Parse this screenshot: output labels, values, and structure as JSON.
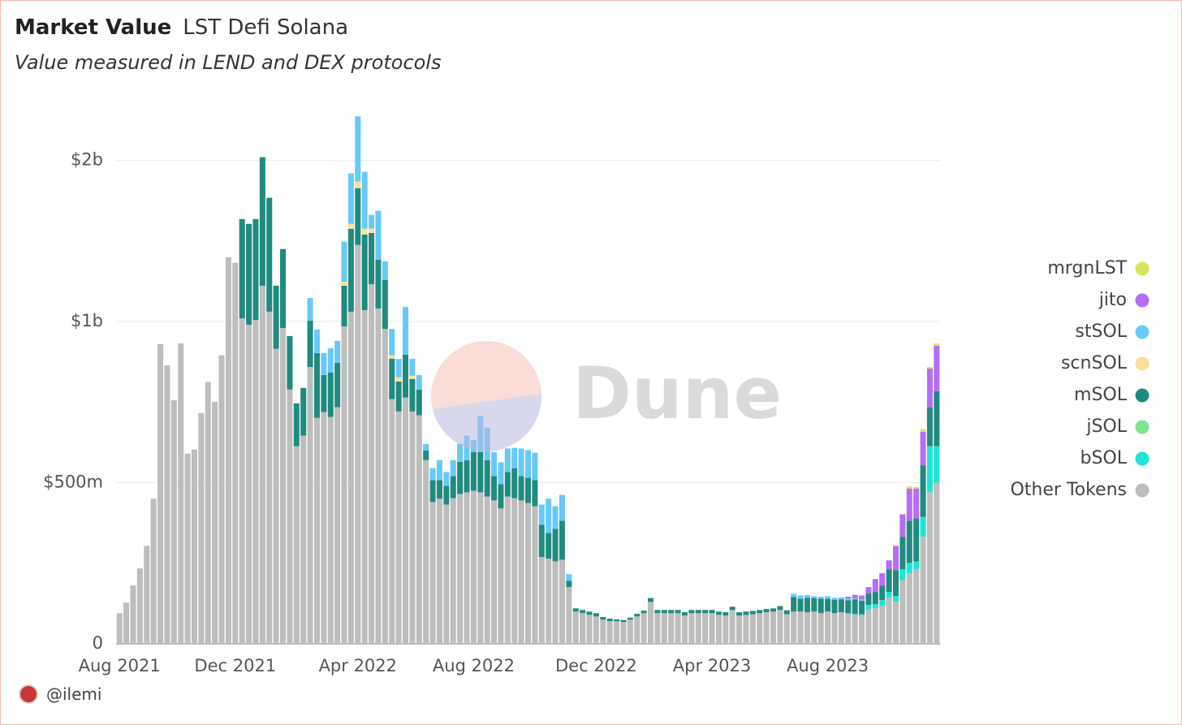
{
  "chart_data": {
    "type": "stacked_bar",
    "title": "Market Value",
    "subtitle": "LST Defi Solana",
    "description": "Value measured in LEND and DEX protocols",
    "author": "@ilemi",
    "watermark": "Dune",
    "categories": [
      "Aug 2021",
      null,
      null,
      null,
      null,
      null,
      null,
      null,
      null,
      null,
      null,
      null,
      null,
      null,
      null,
      null,
      null,
      "Dec 2021",
      null,
      null,
      null,
      null,
      null,
      null,
      null,
      null,
      null,
      null,
      null,
      null,
      null,
      null,
      null,
      null,
      null,
      "Apr 2022",
      null,
      null,
      null,
      null,
      null,
      null,
      null,
      null,
      null,
      null,
      null,
      null,
      null,
      null,
      null,
      null,
      "Aug 2022",
      null,
      null,
      null,
      null,
      null,
      null,
      null,
      null,
      null,
      null,
      null,
      null,
      null,
      null,
      null,
      null,
      null,
      "Dec 2022",
      null,
      null,
      null,
      null,
      null,
      null,
      null,
      null,
      null,
      null,
      null,
      null,
      null,
      null,
      null,
      null,
      "Apr 2023",
      null,
      null,
      null,
      null,
      null,
      null,
      null,
      null,
      null,
      null,
      null,
      null,
      null,
      null,
      null,
      null,
      "Aug 2023",
      null,
      null,
      null,
      null,
      null,
      null,
      null,
      null,
      null,
      null,
      null,
      null,
      null,
      null,
      null,
      null
    ],
    "ylim": [
      0,
      2300
    ],
    "yticks": [
      0,
      {
        "value": 500,
        "label": "$500m"
      },
      {
        "value": 1000,
        "label": "$1b"
      },
      {
        "value": 2000,
        "label": "$2b"
      }
    ],
    "grid": true,
    "legend": "right",
    "series": [
      {
        "name": "Other Tokens",
        "color": "#bdbdbd",
        "values": [
          95,
          128,
          181,
          234,
          304,
          450,
          930,
          864,
          756,
          932,
          590,
          603,
          716,
          812,
          751,
          895,
          1399,
          1364,
          1020,
          990,
          1010,
          1222,
          1061,
          915,
          980,
          789,
          613,
          646,
          859,
          701,
          719,
          704,
          734,
          985,
          1061,
          1475,
          1071,
          1232,
          1081,
          977,
          759,
          721,
          764,
          721,
          709,
          570,
          440,
          450,
          432,
          452,
          465,
          470,
          475,
          470,
          457,
          445,
          420,
          457,
          452,
          445,
          437,
          427,
          269,
          264,
          256,
          261,
          176,
          100,
          95,
          90,
          85,
          75,
          70,
          70,
          68,
          75,
          85,
          95,
          130,
          95,
          95,
          95,
          95,
          88,
          95,
          95,
          95,
          95,
          90,
          88,
          105,
          88,
          90,
          92,
          95,
          98,
          100,
          105,
          92,
          100,
          100,
          98,
          100,
          95,
          100,
          95,
          98,
          95,
          90,
          88,
          106,
          111,
          118,
          143,
          131,
          199,
          219,
          231,
          332,
          470,
          500
        ]
      },
      {
        "name": "bSOL",
        "color": "#1de5d6",
        "values": [
          0,
          0,
          0,
          0,
          0,
          0,
          0,
          0,
          0,
          0,
          0,
          0,
          0,
          0,
          0,
          0,
          0,
          0,
          0,
          0,
          0,
          0,
          0,
          0,
          0,
          0,
          0,
          0,
          0,
          0,
          0,
          0,
          0,
          0,
          0,
          0,
          0,
          0,
          0,
          0,
          0,
          0,
          0,
          0,
          0,
          0,
          0,
          0,
          0,
          0,
          0,
          0,
          0,
          0,
          0,
          0,
          0,
          0,
          0,
          0,
          0,
          0,
          0,
          0,
          0,
          0,
          0,
          0,
          0,
          0,
          0,
          0,
          0,
          0,
          0,
          0,
          0,
          0,
          0,
          0,
          0,
          0,
          0,
          0,
          0,
          0,
          0,
          0,
          0,
          0,
          0,
          0,
          0,
          0,
          0,
          0,
          0,
          0,
          0,
          0,
          0,
          0,
          0,
          0,
          0,
          0,
          0,
          0,
          3,
          4,
          15,
          12,
          18,
          18,
          17,
          32,
          32,
          25,
          62,
          143,
          113
        ]
      },
      {
        "name": "jSOL",
        "color": "#7ee68e",
        "values": [
          0,
          0,
          0,
          0,
          0,
          0,
          0,
          0,
          0,
          0,
          0,
          0,
          0,
          0,
          0,
          0,
          0,
          0,
          0,
          0,
          0,
          0,
          0,
          0,
          0,
          0,
          0,
          0,
          0,
          0,
          0,
          0,
          0,
          0,
          0,
          0,
          0,
          0,
          0,
          0,
          0,
          0,
          0,
          0,
          0,
          0,
          0,
          0,
          0,
          0,
          0,
          0,
          0,
          0,
          0,
          0,
          0,
          0,
          0,
          0,
          0,
          0,
          0,
          0,
          0,
          0,
          0,
          0,
          0,
          0,
          0,
          0,
          0,
          0,
          0,
          0,
          0,
          0,
          0,
          0,
          0,
          0,
          0,
          0,
          0,
          0,
          0,
          0,
          0,
          0,
          0,
          0,
          0,
          0,
          0,
          0,
          0,
          0,
          0,
          0,
          0,
          0,
          0,
          0,
          0,
          0,
          0,
          0,
          0,
          0,
          0,
          0,
          0,
          0,
          0,
          0,
          0,
          0,
          0,
          0,
          0
        ]
      },
      {
        "name": "mSOL",
        "color": "#218a7f",
        "values": [
          0,
          0,
          0,
          0,
          0,
          0,
          0,
          0,
          0,
          0,
          0,
          0,
          0,
          0,
          0,
          0,
          0,
          0,
          616,
          616,
          626,
          798,
          707,
          307,
          470,
          166,
          133,
          148,
          146,
          201,
          115,
          138,
          138,
          237,
          515,
          353,
          469,
          318,
          303,
          281,
          126,
          93,
          133,
          101,
          80,
          30,
          68,
          58,
          58,
          68,
          100,
          100,
          120,
          125,
          113,
          75,
          75,
          76,
          93,
          75,
          78,
          81,
          100,
          80,
          101,
          121,
          20,
          10,
          10,
          10,
          10,
          8,
          8,
          6,
          6,
          6,
          8,
          8,
          12,
          10,
          10,
          10,
          10,
          10,
          10,
          10,
          10,
          10,
          10,
          10,
          10,
          10,
          10,
          10,
          10,
          10,
          10,
          12,
          12,
          45,
          40,
          45,
          42,
          45,
          40,
          42,
          40,
          40,
          45,
          42,
          35,
          38,
          45,
          70,
          81,
          101,
          131,
          133,
          159,
          121,
          171
        ]
      },
      {
        "name": "scnSOL",
        "color": "#fddf98",
        "values": [
          0,
          0,
          0,
          0,
          0,
          0,
          0,
          0,
          0,
          0,
          0,
          0,
          0,
          0,
          0,
          0,
          0,
          0,
          0,
          0,
          0,
          0,
          0,
          0,
          0,
          0,
          0,
          0,
          0,
          0,
          0,
          0,
          0,
          25,
          30,
          41,
          36,
          26,
          0,
          0,
          10,
          13,
          0,
          10,
          0,
          0,
          0,
          0,
          0,
          0,
          0,
          0,
          0,
          0,
          0,
          0,
          0,
          0,
          0,
          0,
          0,
          0,
          0,
          0,
          0,
          0,
          0,
          0,
          0,
          0,
          0,
          0,
          0,
          0,
          0,
          0,
          0,
          0,
          0,
          0,
          0,
          0,
          0,
          0,
          0,
          0,
          0,
          0,
          0,
          0,
          0,
          0,
          0,
          0,
          0,
          0,
          0,
          0,
          0,
          0,
          0,
          0,
          0,
          0,
          0,
          0,
          0,
          0,
          0,
          0,
          0,
          0,
          0,
          0,
          0,
          0,
          0,
          0,
          0,
          0,
          0
        ]
      },
      {
        "name": "stSOL",
        "color": "#68c9f8",
        "values": [
          0,
          0,
          0,
          0,
          0,
          0,
          0,
          0,
          0,
          0,
          0,
          0,
          0,
          0,
          0,
          0,
          0,
          0,
          0,
          0,
          0,
          0,
          0,
          0,
          0,
          0,
          0,
          0,
          141,
          73,
          68,
          75,
          68,
          248,
          313,
          404,
          353,
          86,
          303,
          116,
          82,
          57,
          194,
          53,
          45,
          20,
          37,
          62,
          43,
          50,
          56,
          76,
          38,
          111,
          101,
          75,
          68,
          73,
          63,
          86,
          86,
          85,
          63,
          106,
          70,
          80,
          20,
          0,
          0,
          0,
          0,
          0,
          0,
          0,
          0,
          0,
          0,
          0,
          0,
          0,
          0,
          0,
          0,
          0,
          0,
          0,
          0,
          0,
          0,
          0,
          0,
          0,
          0,
          0,
          0,
          0,
          0,
          0,
          0,
          10,
          10,
          8,
          6,
          6,
          8,
          6,
          6,
          6,
          4,
          4,
          0,
          0,
          0,
          0,
          0,
          0,
          0,
          0,
          0,
          0,
          0
        ]
      },
      {
        "name": "jito",
        "color": "#b66df5",
        "values": [
          0,
          0,
          0,
          0,
          0,
          0,
          0,
          0,
          0,
          0,
          0,
          0,
          0,
          0,
          0,
          0,
          0,
          0,
          0,
          0,
          0,
          0,
          0,
          0,
          0,
          0,
          0,
          0,
          0,
          0,
          0,
          0,
          0,
          0,
          0,
          0,
          0,
          0,
          0,
          0,
          0,
          0,
          0,
          0,
          0,
          0,
          0,
          0,
          0,
          0,
          0,
          0,
          0,
          0,
          0,
          0,
          0,
          0,
          0,
          0,
          0,
          0,
          0,
          0,
          0,
          0,
          0,
          0,
          0,
          0,
          0,
          0,
          0,
          0,
          0,
          0,
          0,
          0,
          0,
          0,
          0,
          0,
          0,
          0,
          0,
          0,
          0,
          0,
          0,
          0,
          0,
          0,
          0,
          0,
          0,
          0,
          0,
          0,
          0,
          0,
          0,
          0,
          0,
          0,
          0,
          0,
          0,
          5,
          10,
          12,
          20,
          40,
          38,
          28,
          75,
          70,
          100,
          93,
          105,
          120,
          141
        ]
      },
      {
        "name": "mrgnLST",
        "color": "#d9e65b",
        "values": [
          0,
          0,
          0,
          0,
          0,
          0,
          0,
          0,
          0,
          0,
          0,
          0,
          0,
          0,
          0,
          0,
          0,
          0,
          0,
          0,
          0,
          0,
          0,
          0,
          0,
          0,
          0,
          0,
          0,
          0,
          0,
          0,
          0,
          0,
          0,
          0,
          0,
          0,
          0,
          0,
          0,
          0,
          0,
          0,
          0,
          0,
          0,
          0,
          0,
          0,
          0,
          0,
          0,
          0,
          0,
          0,
          0,
          0,
          0,
          0,
          0,
          0,
          0,
          0,
          0,
          0,
          0,
          0,
          0,
          0,
          0,
          0,
          0,
          0,
          0,
          0,
          0,
          0,
          0,
          0,
          0,
          0,
          0,
          0,
          0,
          0,
          0,
          0,
          0,
          0,
          0,
          0,
          0,
          0,
          0,
          0,
          0,
          0,
          0,
          0,
          0,
          0,
          0,
          0,
          0,
          0,
          0,
          0,
          0,
          0,
          0,
          0,
          0,
          0,
          0,
          0,
          6,
          5,
          8,
          5,
          7
        ]
      }
    ]
  }
}
